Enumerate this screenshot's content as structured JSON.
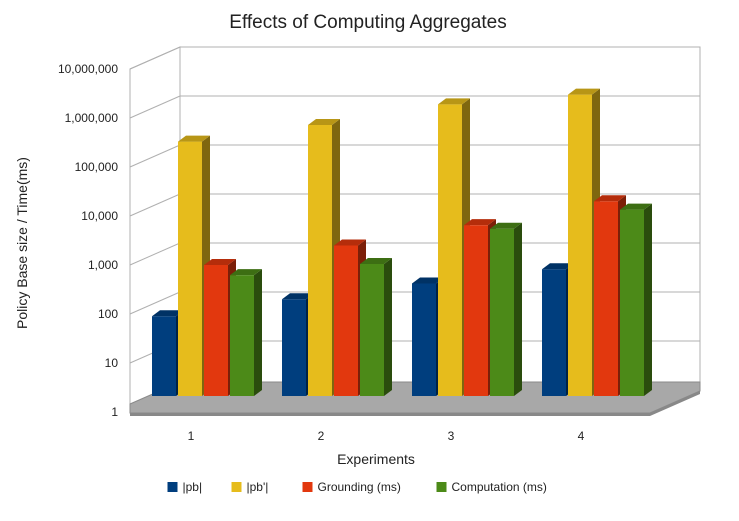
{
  "chart_data": {
    "type": "bar",
    "title": "Effects of Computing Aggregates",
    "xlabel": "Experiments",
    "ylabel": "Policy Base size / Time(ms)",
    "y_scale": "log",
    "ylim": [
      1,
      10000000
    ],
    "y_ticks": [
      "1",
      "10",
      "100",
      "1,000",
      "10,000",
      "100,000",
      "1,000,000",
      "10,000,000"
    ],
    "categories": [
      "1",
      "2",
      "3",
      "4"
    ],
    "grid": true,
    "legend_position": "bottom",
    "series": [
      {
        "name": "|pb|",
        "color": "#003e7e",
        "values": [
          90,
          200,
          420,
          820
        ]
      },
      {
        "name": "|pb'|",
        "color": "#e6bc1c",
        "values": [
          330000,
          720000,
          1900000,
          3000000
        ]
      },
      {
        "name": "Grounding (ms)",
        "color": "#e2380e",
        "values": [
          1000,
          2500,
          6500,
          20000
        ]
      },
      {
        "name": "Computation (ms)",
        "color": "#4c8a18",
        "values": [
          620,
          1050,
          5500,
          13500
        ]
      }
    ]
  }
}
